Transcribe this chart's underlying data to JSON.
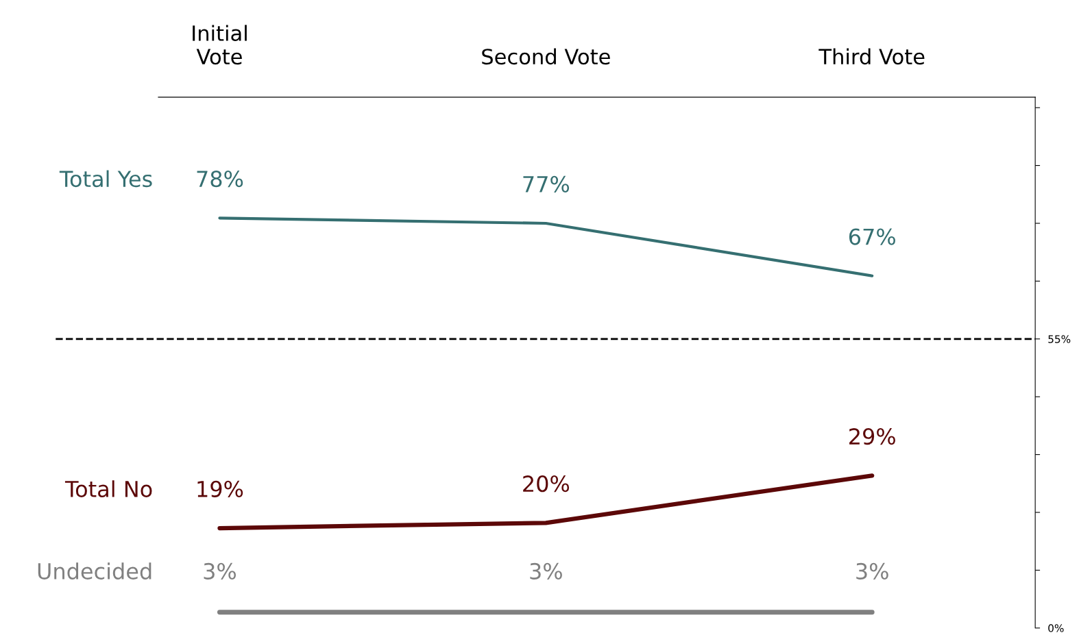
{
  "chart_data": {
    "type": "line",
    "categories": [
      "Initial\nVote",
      "Second Vote",
      "Third Vote"
    ],
    "series": [
      {
        "name": "Total Yes",
        "color": "#356f71",
        "values": [
          78,
          77,
          67
        ],
        "value_labels": [
          "78%",
          "77%",
          "67%"
        ]
      },
      {
        "name": "Total No",
        "color": "#5c0808",
        "values": [
          19,
          20,
          29
        ],
        "value_labels": [
          "19%",
          "20%",
          "29%"
        ]
      },
      {
        "name": "Undecided",
        "color": "#808080",
        "values": [
          3,
          3,
          3
        ],
        "value_labels": [
          "3%",
          "3%",
          "3%"
        ]
      }
    ],
    "ylim": [
      0,
      101
    ],
    "yticks": [
      {
        "value": 0,
        "label": "0%"
      },
      {
        "value": 11,
        "label": null
      },
      {
        "value": 22,
        "label": null
      },
      {
        "value": 33,
        "label": null
      },
      {
        "value": 44,
        "label": null
      },
      {
        "value": 55,
        "label": "55%"
      },
      {
        "value": 66,
        "label": null
      },
      {
        "value": 77,
        "label": null
      },
      {
        "value": 88,
        "label": null
      },
      {
        "value": 99,
        "label": null
      }
    ],
    "ref_lines": [
      {
        "axis": "y",
        "value": 55,
        "color": "#000000",
        "line_style": "dashed"
      }
    ],
    "grid": false,
    "legend": false,
    "marker": "none",
    "line_style": "solid"
  }
}
